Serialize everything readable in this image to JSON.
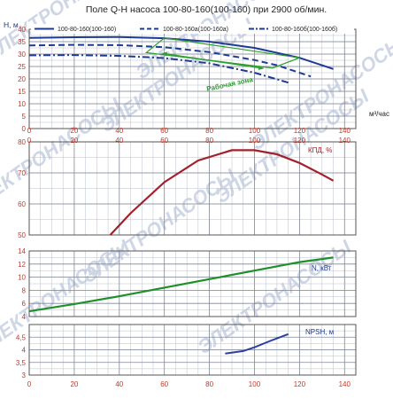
{
  "title": "Поле Q-H насоса 100-80-160(100-160) при 2900 об/мин.",
  "watermark": "ЭЛЕКТРОНАСОСЫ",
  "colors": {
    "grid_major": "#7f8796",
    "grid_minor": "#b8bfcc",
    "qh_curves": "#1f3a93",
    "work_zone": "#2e9e2e",
    "efficiency": "#a3202a",
    "power": "#1f8f2a",
    "npsh": "#2b3fa3",
    "tick_text": "#c0392b",
    "axis_label": "#1f3a93"
  },
  "chart_data": [
    {
      "id": "qh",
      "type": "line",
      "ylabel": "Н, м",
      "xlabel": "м³/час",
      "xlim": [
        0,
        145
      ],
      "ylim": [
        0,
        40
      ],
      "x_ticks": [
        0,
        20,
        40,
        60,
        80,
        100,
        120,
        140
      ],
      "y_ticks": [
        0,
        5,
        10,
        15,
        20,
        25,
        30,
        35,
        40
      ],
      "legend": "top",
      "series": [
        {
          "name": "100-80-160(100-160)",
          "style": "solid",
          "x": [
            0,
            20,
            40,
            60,
            80,
            100,
            120,
            135
          ],
          "y": [
            36.5,
            36.8,
            36.9,
            36.4,
            35.0,
            32.5,
            28.5,
            24.0
          ]
        },
        {
          "name": "100-80-160а(100-160а)",
          "style": "dashed",
          "x": [
            0,
            20,
            40,
            60,
            80,
            100,
            110,
            125
          ],
          "y": [
            33.5,
            33.7,
            33.6,
            32.8,
            30.8,
            27.6,
            25.5,
            21.0
          ]
        },
        {
          "name": "100-80-160б(100-160б)",
          "style": "dashdot",
          "x": [
            0,
            20,
            40,
            60,
            80,
            100,
            115
          ],
          "y": [
            29.5,
            29.6,
            29.3,
            28.4,
            26.3,
            22.5,
            18.5
          ]
        }
      ],
      "annotation": {
        "text": "Рабочая зона",
        "points": [
          {
            "x": 52,
            "y": 30.6
          },
          {
            "x": 60,
            "y": 36.5
          },
          {
            "x": 120,
            "y": 28.5
          },
          {
            "x": 108,
            "y": 24.4
          }
        ],
        "arrow_from": {
          "x": 104,
          "y": 24.2
        },
        "arrow_to": {
          "x": 59,
          "y": 30.3
        }
      }
    },
    {
      "id": "eff",
      "type": "line",
      "ylabel": "КПД, %",
      "xlim": [
        0,
        145
      ],
      "ylim": [
        50,
        80
      ],
      "x_ticks": [
        0,
        20,
        40,
        60,
        80,
        100,
        120,
        140
      ],
      "y_ticks": [
        50,
        60,
        70,
        80
      ],
      "series": [
        {
          "name": "КПД, %",
          "x": [
            36,
            45,
            60,
            75,
            90,
            100,
            110,
            120,
            130,
            135
          ],
          "y": [
            50,
            57,
            67,
            74,
            77.3,
            77.3,
            76,
            73.2,
            69.5,
            67.5
          ]
        }
      ]
    },
    {
      "id": "power",
      "type": "line",
      "ylabel": "N, кВт",
      "xlim": [
        0,
        145
      ],
      "ylim": [
        4,
        14
      ],
      "x_ticks": [
        0,
        20,
        40,
        60,
        80,
        100,
        120,
        140
      ],
      "y_ticks": [
        4,
        6,
        8,
        10,
        12,
        14
      ],
      "series": [
        {
          "name": "N, кВт",
          "x": [
            0,
            20,
            40,
            60,
            80,
            100,
            120,
            135
          ],
          "y": [
            4.8,
            5.9,
            7.1,
            8.4,
            9.7,
            11.0,
            12.3,
            13.0
          ]
        }
      ]
    },
    {
      "id": "npsh",
      "type": "line",
      "ylabel": "NPSH, м",
      "xlim": [
        0,
        145
      ],
      "ylim": [
        3,
        5
      ],
      "x_ticks": [
        0,
        20,
        40,
        60,
        80,
        100,
        120,
        140
      ],
      "y_ticks": [
        3,
        3.5,
        4,
        4.5
      ],
      "y_tick_labels": [
        "3",
        "3,5",
        "4",
        "4,5"
      ],
      "series": [
        {
          "name": "NPSH, м",
          "x": [
            87,
            95,
            100,
            107,
            115
          ],
          "y": [
            3.85,
            3.95,
            4.1,
            4.35,
            4.62
          ]
        }
      ]
    }
  ]
}
